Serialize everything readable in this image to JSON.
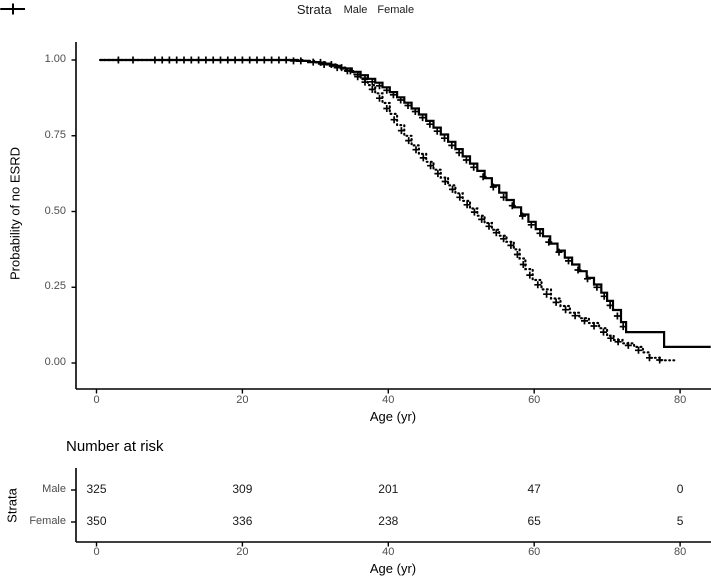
{
  "legend": {
    "title": "Strata",
    "items": [
      {
        "label": "Male",
        "linetype": "dotted"
      },
      {
        "label": "Female",
        "linetype": "solid"
      }
    ]
  },
  "chart_data": {
    "type": "line",
    "subtype": "kaplan-meier-step",
    "title": "",
    "xlabel": "Age (yr)",
    "ylabel": "Probability of no ESRD",
    "xticks": [
      0,
      20,
      40,
      60,
      80
    ],
    "ytick_labels": [
      "0.00",
      "0.25",
      "0.50",
      "0.75",
      "1.00"
    ],
    "xlim": [
      -3,
      84.2
    ],
    "ylim": [
      0,
      1
    ],
    "grid": false,
    "legend_position": "top",
    "curve_color": "#000000",
    "axis_color": "#000000",
    "tick_text_color": "#4d4d4d",
    "series": [
      {
        "name": "Male",
        "linetype": "dotted",
        "points": [
          [
            0.5,
            1
          ],
          [
            27,
            1
          ],
          [
            28.5,
            0.997
          ],
          [
            30,
            0.992
          ],
          [
            31.5,
            0.985
          ],
          [
            33,
            0.975
          ],
          [
            34.2,
            0.964
          ],
          [
            35.2,
            0.952
          ],
          [
            36.2,
            0.937
          ],
          [
            37.2,
            0.917
          ],
          [
            38.2,
            0.89
          ],
          [
            39.2,
            0.858
          ],
          [
            40.2,
            0.822
          ],
          [
            41.2,
            0.785
          ],
          [
            42.2,
            0.75
          ],
          [
            43.2,
            0.718
          ],
          [
            44.2,
            0.69
          ],
          [
            45.2,
            0.664
          ],
          [
            46.2,
            0.638
          ],
          [
            47.2,
            0.612
          ],
          [
            48.2,
            0.586
          ],
          [
            49.2,
            0.56
          ],
          [
            50.2,
            0.535
          ],
          [
            51.2,
            0.51
          ],
          [
            52.2,
            0.486
          ],
          [
            53.2,
            0.462
          ],
          [
            54.2,
            0.44
          ],
          [
            55.2,
            0.42
          ],
          [
            56.2,
            0.4
          ],
          [
            57.2,
            0.375
          ],
          [
            58,
            0.345
          ],
          [
            58.8,
            0.31
          ],
          [
            59.8,
            0.274
          ],
          [
            61,
            0.243
          ],
          [
            62.3,
            0.213
          ],
          [
            63.6,
            0.188
          ],
          [
            64.9,
            0.166
          ],
          [
            66.2,
            0.148
          ],
          [
            67.5,
            0.132
          ],
          [
            68.9,
            0.115
          ],
          [
            70,
            0.09
          ],
          [
            70.9,
            0.076
          ],
          [
            72.1,
            0.065
          ],
          [
            73.7,
            0.053
          ],
          [
            74.9,
            0.035
          ],
          [
            75.8,
            0.017
          ],
          [
            77.3,
            0.009
          ],
          [
            79.3,
            0.004
          ]
        ],
        "censors": [
          [
            5,
            1
          ],
          [
            8,
            1
          ],
          [
            10,
            1
          ],
          [
            12,
            1
          ],
          [
            14,
            1
          ],
          [
            16,
            1
          ],
          [
            18,
            1
          ],
          [
            20,
            1
          ],
          [
            22,
            1
          ],
          [
            24,
            1
          ],
          [
            26,
            1
          ],
          [
            28,
            0.997
          ],
          [
            30.7,
            0.992
          ],
          [
            32.2,
            0.985
          ],
          [
            33.6,
            0.975
          ],
          [
            34.8,
            0.964
          ],
          [
            35.8,
            0.945
          ],
          [
            36.8,
            0.927
          ],
          [
            37.8,
            0.903
          ],
          [
            38.8,
            0.874
          ],
          [
            39.8,
            0.84
          ],
          [
            40.8,
            0.803
          ],
          [
            41.8,
            0.767
          ],
          [
            42.8,
            0.734
          ],
          [
            43.8,
            0.704
          ],
          [
            44.8,
            0.677
          ],
          [
            45.8,
            0.651
          ],
          [
            46.8,
            0.625
          ],
          [
            47.8,
            0.599
          ],
          [
            48.8,
            0.573
          ],
          [
            49.8,
            0.547
          ],
          [
            50.8,
            0.522
          ],
          [
            51.8,
            0.498
          ],
          [
            52.8,
            0.474
          ],
          [
            53.8,
            0.451
          ],
          [
            54.8,
            0.43
          ],
          [
            55.8,
            0.41
          ],
          [
            56.8,
            0.388
          ],
          [
            57.7,
            0.358
          ],
          [
            58.5,
            0.325
          ],
          [
            59.4,
            0.29
          ],
          [
            60.5,
            0.258
          ],
          [
            61.7,
            0.227
          ],
          [
            63,
            0.2
          ],
          [
            64.3,
            0.176
          ],
          [
            65.6,
            0.156
          ],
          [
            66.9,
            0.139
          ],
          [
            68.2,
            0.122
          ],
          [
            69.5,
            0.102
          ],
          [
            70.5,
            0.082
          ],
          [
            71.5,
            0.07
          ],
          [
            72.9,
            0.058
          ],
          [
            74.3,
            0.042
          ],
          [
            75.8,
            0.017
          ],
          [
            77.2,
            0.01
          ]
        ]
      },
      {
        "name": "Female",
        "linetype": "solid",
        "points": [
          [
            0.5,
            1
          ],
          [
            26,
            1
          ],
          [
            27.5,
            0.997
          ],
          [
            29,
            0.993
          ],
          [
            30.5,
            0.988
          ],
          [
            32,
            0.981
          ],
          [
            33.5,
            0.972
          ],
          [
            35,
            0.961
          ],
          [
            36.2,
            0.95
          ],
          [
            37.2,
            0.938
          ],
          [
            38.2,
            0.925
          ],
          [
            39.2,
            0.91
          ],
          [
            40.2,
            0.894
          ],
          [
            41.2,
            0.877
          ],
          [
            42.2,
            0.859
          ],
          [
            43.2,
            0.84
          ],
          [
            44.2,
            0.82
          ],
          [
            45.2,
            0.799
          ],
          [
            46.2,
            0.777
          ],
          [
            47.2,
            0.754
          ],
          [
            48.2,
            0.73
          ],
          [
            49.2,
            0.706
          ],
          [
            50.2,
            0.682
          ],
          [
            51.2,
            0.658
          ],
          [
            52.2,
            0.634
          ],
          [
            53.2,
            0.61
          ],
          [
            54.2,
            0.586
          ],
          [
            55.2,
            0.562
          ],
          [
            56.2,
            0.538
          ],
          [
            57.2,
            0.514
          ],
          [
            58.2,
            0.49
          ],
          [
            59.2,
            0.466
          ],
          [
            60.2,
            0.442
          ],
          [
            61.2,
            0.418
          ],
          [
            62.2,
            0.394
          ],
          [
            63.2,
            0.371
          ],
          [
            64.2,
            0.348
          ],
          [
            65.2,
            0.325
          ],
          [
            66.2,
            0.303
          ],
          [
            67.2,
            0.281
          ],
          [
            68.2,
            0.259
          ],
          [
            69.2,
            0.232
          ],
          [
            70,
            0.205
          ],
          [
            70.8,
            0.175
          ],
          [
            71.9,
            0.135
          ],
          [
            72.6,
            0.102
          ],
          [
            77.8,
            0.053
          ],
          [
            84.2,
            0.053
          ]
        ],
        "censors": [
          [
            3,
            1
          ],
          [
            9,
            1
          ],
          [
            11,
            1
          ],
          [
            13,
            1
          ],
          [
            15,
            1
          ],
          [
            17,
            1
          ],
          [
            19,
            1
          ],
          [
            21,
            1
          ],
          [
            23,
            1
          ],
          [
            25,
            1
          ],
          [
            27,
            0.997
          ],
          [
            29.7,
            0.993
          ],
          [
            31.2,
            0.985
          ],
          [
            33,
            0.975
          ],
          [
            34.4,
            0.964
          ],
          [
            35.8,
            0.952
          ],
          [
            36.8,
            0.94
          ],
          [
            37.8,
            0.928
          ],
          [
            38.8,
            0.915
          ],
          [
            39.8,
            0.9
          ],
          [
            40.7,
            0.885
          ],
          [
            41.7,
            0.868
          ],
          [
            42.7,
            0.85
          ],
          [
            43.7,
            0.83
          ],
          [
            44.7,
            0.81
          ],
          [
            45.7,
            0.788
          ],
          [
            46.7,
            0.765
          ],
          [
            47.7,
            0.742
          ],
          [
            48.7,
            0.718
          ],
          [
            49.7,
            0.694
          ],
          [
            50.7,
            0.67
          ],
          [
            51.7,
            0.646
          ],
          [
            53,
            0.615
          ],
          [
            54.4,
            0.581
          ],
          [
            55.8,
            0.547
          ],
          [
            57,
            0.519
          ],
          [
            58.4,
            0.485
          ],
          [
            59.6,
            0.456
          ],
          [
            60.8,
            0.428
          ],
          [
            62,
            0.399
          ],
          [
            63.4,
            0.366
          ],
          [
            64.7,
            0.337
          ],
          [
            66,
            0.307
          ],
          [
            67.3,
            0.278
          ],
          [
            68.6,
            0.25
          ],
          [
            69.6,
            0.22
          ],
          [
            70.4,
            0.19
          ],
          [
            71.4,
            0.155
          ],
          [
            72.2,
            0.12
          ]
        ]
      }
    ]
  },
  "risk_table": {
    "title": "Number at risk",
    "axis_label": "Strata",
    "xlabel": "Age (yr)",
    "xticks": [
      0,
      20,
      40,
      60,
      80
    ],
    "rows": [
      {
        "label": "Male",
        "values": [
          "325",
          "309",
          "201",
          "47",
          "0"
        ]
      },
      {
        "label": "Female",
        "values": [
          "350",
          "336",
          "238",
          "65",
          "5"
        ]
      }
    ]
  }
}
